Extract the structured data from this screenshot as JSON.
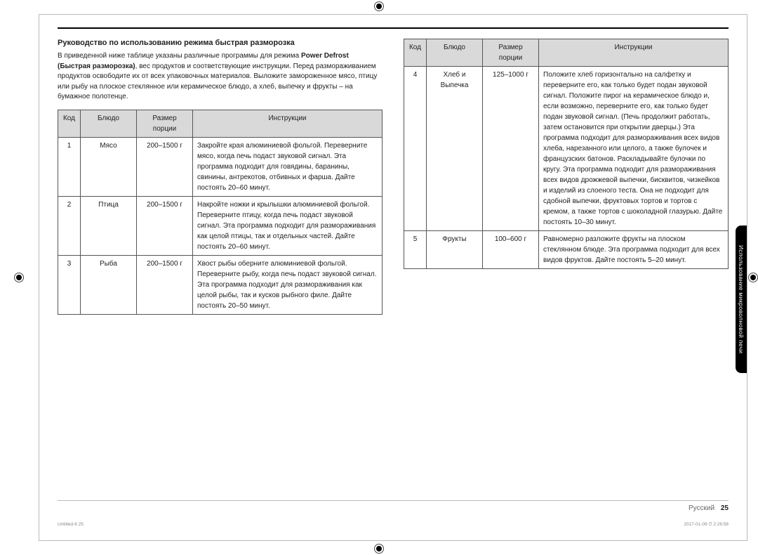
{
  "title": "Руководство по использованию режима быстрая разморозка",
  "intro_pre": "В приведенной ниже таблице указаны различные программы для режима ",
  "intro_bold": "Power Defrost (Быстрая разморозка)",
  "intro_post": ", вес продуктов и соответствующие инструкции. Перед размораживанием продуктов освободите их от всех упаковочных материалов. Выложите замороженное мясо, птицу или рыбу на плоское стеклянное или керамическое блюдо, а хлеб, выпечку и фрукты – на бумажное полотенце.",
  "headers": {
    "code": "Код",
    "dish": "Блюдо",
    "portion": "Размер порции",
    "instr": "Инструкции"
  },
  "left_rows": [
    {
      "code": "1",
      "dish": "Мясо",
      "portion": "200–1500 г",
      "instr": "Закройте края алюминиевой фольгой. Переверните мясо, когда печь подаст звуковой сигнал. Эта программа подходит для говядины, баранины, свинины, антрекотов, отбивных и фарша. Дайте постоять 20–60 минут."
    },
    {
      "code": "2",
      "dish": "Птица",
      "portion": "200–1500 г",
      "instr": "Накройте ножки и крылышки алюминиевой фольгой. Переверните птицу, когда печь подаст звуковой сигнал. Эта программа подходит для размораживания как целой птицы, так и отдельных частей. Дайте постоять 20–60 минут."
    },
    {
      "code": "3",
      "dish": "Рыба",
      "portion": "200–1500 г",
      "instr": "Хвост рыбы оберните алюминиевой фольгой. Переверните рыбу, когда печь подаст звуковой сигнал. Эта программа подходит для размораживания как целой рыбы, так и кусков рыбного филе. Дайте постоять 20–50 минут."
    }
  ],
  "right_rows": [
    {
      "code": "4",
      "dish": "Хлеб и Выпечка",
      "portion": "125–1000 г",
      "instr": "Положите хлеб горизонтально на салфетку и переверните его, как только будет подан звуковой сигнал. Положите пирог на керамическое блюдо и, если возможно, переверните его, как только будет подан звуковой сигнал. (Печь продолжит работать, затем остановится при открытии дверцы.) Эта программа подходит для размораживания всех видов хлеба, нарезанного или целого, а также булочек и французских батонов. Раскладывайте булочки по кругу. Эта программа подходит для размораживания всех видов дрожжевой выпечки, бисквитов, чизкейков и изделий из слоеного теста. Она не подходит для сдобной выпечки, фруктовых тортов и тортов с кремом, а также тортов с шоколадной глазурью. Дайте постоять 10–30 минут."
    },
    {
      "code": "5",
      "dish": "Фрукты",
      "portion": "100–600 г",
      "instr": "Равномерно разложите фрукты на плоском стеклянном блюде. Эта программа подходит для всех видов фруктов. Дайте постоять 5–20 минут."
    }
  ],
  "side_tab": "Использование микроволновой печи",
  "footer_lang": "Русский",
  "footer_page": "25",
  "print_left": "Untitled-6   25",
  "print_right": "2017-01-09   ⏱ 2:26:56"
}
